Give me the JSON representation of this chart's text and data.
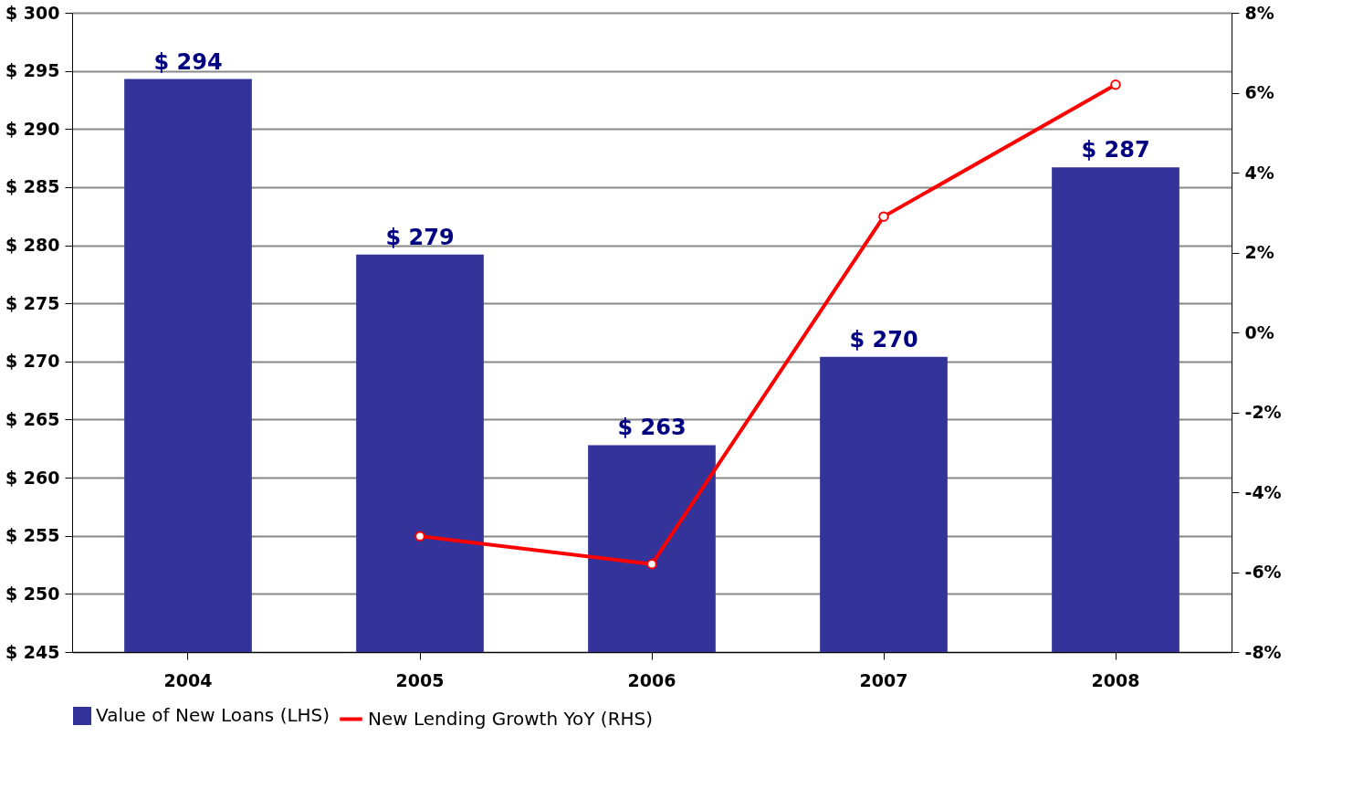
{
  "chart_data": {
    "type": "bar",
    "categories": [
      "2004",
      "2005",
      "2006",
      "2007",
      "2008"
    ],
    "series": [
      {
        "name": "Value of New Loans (LHS)",
        "color": "#333399",
        "values": [
          294.3,
          279.2,
          262.8,
          270.4,
          286.7
        ],
        "value_labels": [
          "$ 294",
          "$ 279",
          "$ 263",
          "$ 270",
          "$ 287"
        ]
      },
      {
        "name": "New Lending Growth YoY (RHS)",
        "type": "line",
        "axis": "y2",
        "color": "#ff0000",
        "marker": "circle",
        "values": [
          null,
          -5.1,
          -5.8,
          2.9,
          6.2
        ]
      }
    ],
    "ylim": [
      245,
      300
    ],
    "yticks": [
      {
        "value": 245,
        "label": "$ 245"
      },
      {
        "value": 250,
        "label": "$ 250"
      },
      {
        "value": 255,
        "label": "$ 255"
      },
      {
        "value": 260,
        "label": "$ 260"
      },
      {
        "value": 265,
        "label": "$ 265"
      },
      {
        "value": 270,
        "label": "$ 270"
      },
      {
        "value": 275,
        "label": "$ 275"
      },
      {
        "value": 280,
        "label": "$ 280"
      },
      {
        "value": 285,
        "label": "$ 285"
      },
      {
        "value": 290,
        "label": "$ 290"
      },
      {
        "value": 295,
        "label": "$ 295"
      },
      {
        "value": 300,
        "label": "$ 300"
      }
    ],
    "y2lim": [
      -8,
      8
    ],
    "y2ticks": [
      {
        "value": -8,
        "label": "-8%"
      },
      {
        "value": -6,
        "label": "-6%"
      },
      {
        "value": -4,
        "label": "-4%"
      },
      {
        "value": -2,
        "label": "-2%"
      },
      {
        "value": 0,
        "label": "0%"
      },
      {
        "value": 2,
        "label": "2%"
      },
      {
        "value": 4,
        "label": "4%"
      },
      {
        "value": 6,
        "label": "6%"
      },
      {
        "value": 8,
        "label": "8%"
      }
    ],
    "grid": "y",
    "legend": "bottom"
  }
}
